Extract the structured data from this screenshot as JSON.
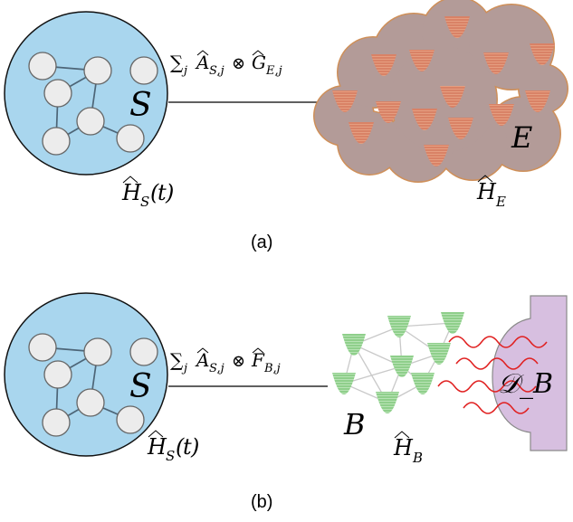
{
  "panel_a": {
    "caption": "(a)",
    "system_label": "S",
    "system_hamiltonian": "Ĥ_S(t)",
    "coupling": "∑_j Â_{S,j} ⊗ Ĝ_{E,j}",
    "environment_label": "E",
    "environment_hamiltonian": "Ĥ_E"
  },
  "panel_b": {
    "caption": "(b)",
    "system_label": "S",
    "system_hamiltonian": "Ĥ_S(t)",
    "coupling": "∑_j Â_{S,j} ⊗ F̂_{B,j}",
    "bath_label": "B",
    "bath_hamiltonian": "Ĥ_B",
    "dissipator_label": "𝒟_B"
  },
  "colors": {
    "system_fill": "#a9d6ee",
    "node_fill": "#ececec",
    "cloud_fill": "#b39b98",
    "cloud_stroke": "#cf8f58",
    "well_fill": "#d98266",
    "bath_well_fill": "#8fcf8b",
    "dissipator_fill": "#d7bfe0",
    "wave_color": "#e02020"
  }
}
